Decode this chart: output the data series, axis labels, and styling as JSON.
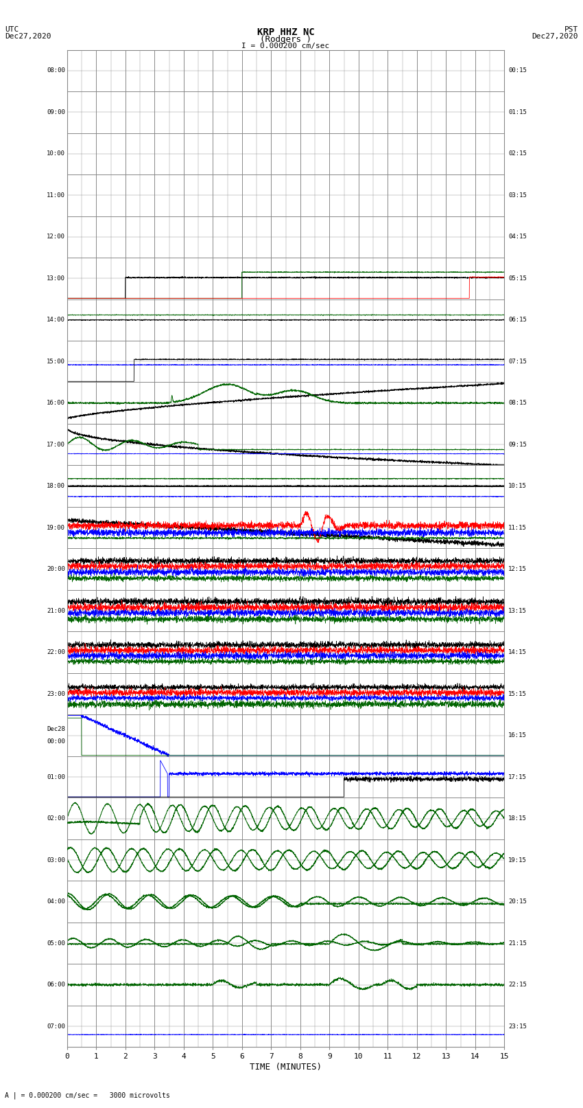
{
  "title_line1": "KRP HHZ NC",
  "title_line2": "(Rodgers )",
  "scale_label": "I = 0.000200 cm/sec",
  "bottom_label": "A | = 0.000200 cm/sec =   3000 microvolts",
  "xlabel": "TIME (MINUTES)",
  "utc_times": [
    "08:00",
    "09:00",
    "10:00",
    "11:00",
    "12:00",
    "13:00",
    "14:00",
    "15:00",
    "16:00",
    "17:00",
    "18:00",
    "19:00",
    "20:00",
    "21:00",
    "22:00",
    "23:00",
    "Dec28\n00:00",
    "01:00",
    "02:00",
    "03:00",
    "04:00",
    "05:00",
    "06:00",
    "07:00"
  ],
  "pst_times": [
    "00:15",
    "01:15",
    "02:15",
    "03:15",
    "04:15",
    "05:15",
    "06:15",
    "07:15",
    "08:15",
    "09:15",
    "10:15",
    "11:15",
    "12:15",
    "13:15",
    "14:15",
    "15:15",
    "16:15",
    "17:15",
    "18:15",
    "19:15",
    "20:15",
    "21:15",
    "22:15",
    "23:15"
  ],
  "xmin": 0,
  "xmax": 15,
  "xticks": [
    0,
    1,
    2,
    3,
    4,
    5,
    6,
    7,
    8,
    9,
    10,
    11,
    12,
    13,
    14,
    15
  ],
  "num_rows": 24,
  "bg_color": "#ffffff",
  "grid_color": "#888888",
  "fig_width": 8.5,
  "fig_height": 16.13
}
